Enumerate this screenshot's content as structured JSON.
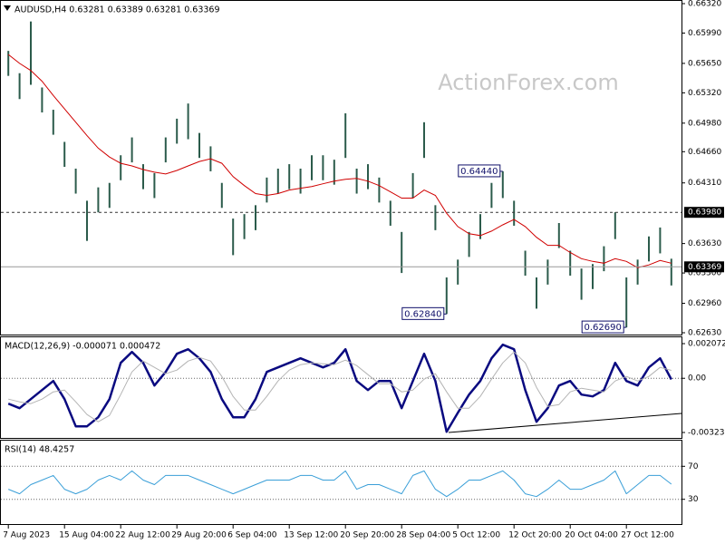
{
  "chart_data": [
    {
      "type": "hilo",
      "title": "AUDUSD,H4  0.63281 0.63389 0.63281 0.63369",
      "watermark": "ActionForex.com",
      "categories": [
        "7 Aug 2023",
        null,
        null,
        null,
        null,
        "15 Aug 04:00",
        null,
        null,
        null,
        null,
        "22 Aug 12:00",
        null,
        null,
        null,
        null,
        "29 Aug 20:00",
        null,
        null,
        null,
        null,
        "6 Sep 04:00",
        null,
        null,
        null,
        null,
        "13 Sep 12:00",
        null,
        null,
        null,
        null,
        "20 Sep 20:00",
        null,
        null,
        null,
        null,
        "28 Sep 04:00",
        null,
        null,
        null,
        null,
        "5 Oct 12:00",
        null,
        null,
        null,
        null,
        "12 Oct 20:00",
        null,
        null,
        null,
        null,
        "20 Oct 04:00",
        null,
        null,
        null,
        null,
        "27 Oct 12:00",
        null,
        null,
        null,
        null
      ],
      "high": [
        0.6579,
        0.6554,
        0.6612,
        0.6538,
        0.6513,
        0.6477,
        0.6447,
        0.6411,
        0.6426,
        0.6431,
        0.6462,
        0.6482,
        0.6452,
        0.6442,
        0.6482,
        0.6503,
        0.652,
        0.6487,
        0.6472,
        0.6431,
        0.6391,
        0.6396,
        0.6406,
        0.6437,
        0.6447,
        0.6452,
        0.6447,
        0.6462,
        0.6462,
        0.6457,
        0.6509,
        0.6447,
        0.6452,
        0.6437,
        0.6411,
        0.6376,
        0.6442,
        0.6499,
        0.6406,
        0.6325,
        0.6345,
        0.6376,
        0.6396,
        0.6431,
        0.6444,
        0.6411,
        0.6355,
        0.6325,
        0.6345,
        0.6386,
        0.6355,
        0.6335,
        0.634,
        0.636,
        0.6398,
        0.6325,
        0.6345,
        0.6371,
        0.6381,
        0.6346
      ],
      "low": [
        0.6551,
        0.6525,
        0.6541,
        0.651,
        0.6485,
        0.6449,
        0.6419,
        0.6366,
        0.6398,
        0.6403,
        0.6434,
        0.6454,
        0.6424,
        0.6414,
        0.6454,
        0.6475,
        0.648,
        0.6459,
        0.6444,
        0.6403,
        0.635,
        0.6368,
        0.6378,
        0.6409,
        0.6419,
        0.6424,
        0.6419,
        0.6434,
        0.6434,
        0.6429,
        0.6459,
        0.6419,
        0.6424,
        0.6409,
        0.6383,
        0.633,
        0.6414,
        0.6459,
        0.6378,
        0.6284,
        0.6317,
        0.6348,
        0.6368,
        0.6403,
        0.6414,
        0.6383,
        0.6327,
        0.629,
        0.6317,
        0.6358,
        0.6327,
        0.63,
        0.6312,
        0.6332,
        0.6368,
        0.6269,
        0.6317,
        0.6343,
        0.6352,
        0.6316
      ],
      "color": "#2b5b4b",
      "overlay": {
        "color": "#d00000",
        "values": [
          0.6575,
          0.6565,
          0.6557,
          0.6545,
          0.6529,
          0.6514,
          0.6499,
          0.6484,
          0.647,
          0.646,
          0.6453,
          0.645,
          0.6446,
          0.6443,
          0.6441,
          0.6445,
          0.645,
          0.6455,
          0.6458,
          0.6453,
          0.6438,
          0.6428,
          0.6419,
          0.6417,
          0.6419,
          0.6423,
          0.6425,
          0.6427,
          0.643,
          0.6433,
          0.6435,
          0.6436,
          0.6433,
          0.6428,
          0.6421,
          0.6414,
          0.6414,
          0.6423,
          0.6417,
          0.6397,
          0.6382,
          0.6374,
          0.6372,
          0.6377,
          0.6384,
          0.639,
          0.6382,
          0.637,
          0.6361,
          0.6361,
          0.6353,
          0.6346,
          0.6343,
          0.6341,
          0.6346,
          0.6343,
          0.6336,
          0.6339,
          0.6344,
          0.6341
        ]
      },
      "levels": [
        {
          "value": 0.6398,
          "label": "0.63980",
          "style": "dashed"
        },
        {
          "value": 0.63369,
          "label": "0.63369",
          "style": "solid"
        }
      ],
      "annotations": [
        {
          "value": 0.6444,
          "label": "0.64440"
        },
        {
          "value": 0.6284,
          "label": "0.62840"
        },
        {
          "value": 0.6269,
          "label": "0.62690"
        }
      ],
      "ylim": [
        0.6263,
        0.6632
      ],
      "yticks": [
        {
          "value": 0.6632,
          "label": "0.66320"
        },
        {
          "value": 0.6599,
          "label": "0.65990"
        },
        {
          "value": 0.6565,
          "label": "0.65650"
        },
        {
          "value": 0.6532,
          "label": "0.65320"
        },
        {
          "value": 0.6498,
          "label": "0.64980"
        },
        {
          "value": 0.6466,
          "label": "0.64660"
        },
        {
          "value": 0.6431,
          "label": "0.64310"
        },
        {
          "value": 0.6363,
          "label": "0.63630"
        },
        {
          "value": 0.633,
          "label": "0.63300"
        },
        {
          "value": 0.6296,
          "label": "0.62960"
        },
        {
          "value": 0.6263,
          "label": "0.62630"
        }
      ],
      "grid": false
    },
    {
      "type": "line",
      "title": "MACD(12,26,9) -0.000071 0.000472",
      "baseline": true,
      "series": [
        {
          "color": "#0a0a80",
          "width": 2.5,
          "values": [
            -0.001517,
            -0.001788,
            -0.001246,
            -0.000705,
            -0.000163,
            -0.001246,
            -0.002872,
            -0.002872,
            -0.00233,
            -0.001246,
            0.000921,
            0.001572,
            0.000921,
            -0.000434,
            0.000379,
            0.001463,
            0.001734,
            0.001192,
            0.000379,
            -0.001246,
            -0.00233,
            -0.00233,
            -0.001246,
            0.000379,
            0.00065,
            0.000921,
            0.001192,
            0.000921,
            0.00065,
            0.000921,
            0.001734,
            -0.000163,
            -0.000705,
            -0.000163,
            -0.000163,
            -0.001788,
            -0.000163,
            0.001463,
            -0.000163,
            -0.003197,
            -0.002059,
            -0.000976,
            -0.000163,
            0.001192,
            0.002005,
            0.001734,
            -0.000705,
            -0.002601,
            -0.001788,
            -0.000434,
            -0.000163,
            -0.000976,
            -0.001084,
            -0.000705,
            0.000921,
            -0.000163,
            -0.000434,
            0.00065,
            0.001192,
            -7.1e-05
          ]
        },
        {
          "color": "#b4b4b4",
          "width": 1,
          "values": [
            -0.001246,
            -0.001409,
            -0.001517,
            -0.001246,
            -0.000813,
            -0.000705,
            -0.001409,
            -0.002168,
            -0.002601,
            -0.002222,
            -0.000976,
            0.000379,
            0.00103,
            0.00065,
            0.000271,
            0.000488,
            0.00103,
            0.001246,
            0.00103,
            0.000108,
            -0.001084,
            -0.001897,
            -0.001897,
            -0.001084,
            -0.000163,
            0.000488,
            0.000813,
            0.000921,
            0.000867,
            0.000813,
            0.001084,
            0.000759,
            0.000217,
            -0.000325,
            -0.000325,
            -0.000813,
            -0.000705,
            -5.4e-05,
            0.000271,
            -0.000813,
            -0.001788,
            -0.001788,
            -0.001084,
            -5.4e-05,
            0.000921,
            0.001572,
            0.000921,
            -0.000542,
            -0.00168,
            -0.001572,
            -0.000813,
            -0.000596,
            -0.000705,
            -0.000813,
            -0.000163,
            0.000108,
            -0.000163,
            0.000108,
            0.00065,
            0.000472
          ]
        }
      ],
      "ylim": [
        -0.003564,
        0.002451
      ],
      "yticks": [
        0.002072,
        {
          "value": 0,
          "label": "0.00"
        },
        -0.003239
      ],
      "grid": false
    },
    {
      "type": "line",
      "title": "RSI(14) 48.4257",
      "series": [
        {
          "color": "#3a9fd8",
          "width": 1,
          "values": [
            42.2,
            36.7,
            47.8,
            53.3,
            58.9,
            42.2,
            36.7,
            42.2,
            53.3,
            58.9,
            53.3,
            64.4,
            53.3,
            47.8,
            58.9,
            58.9,
            58.9,
            53.3,
            47.8,
            42.2,
            36.7,
            42.2,
            47.8,
            53.3,
            53.3,
            53.3,
            58.9,
            58.9,
            53.3,
            53.3,
            64.4,
            42.2,
            47.8,
            47.8,
            42.2,
            36.7,
            58.9,
            64.4,
            42.2,
            33.3,
            42.2,
            53.3,
            53.3,
            58.9,
            64.4,
            53.3,
            36.7,
            33.3,
            42.2,
            53.3,
            42.2,
            42.2,
            47.8,
            53.3,
            64.4,
            36.7,
            47.8,
            58.9,
            58.9,
            48.4
          ]
        }
      ],
      "ylim": [
        0,
        100
      ],
      "yticks": [
        70,
        30
      ],
      "grid": true
    }
  ]
}
